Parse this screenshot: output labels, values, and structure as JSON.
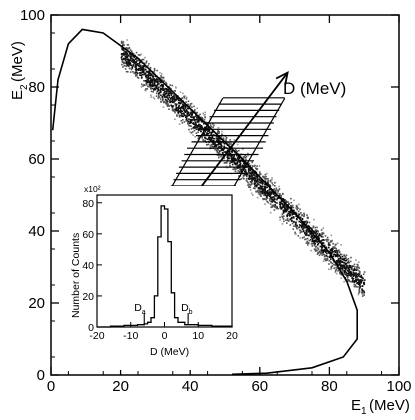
{
  "chart_data": [
    {
      "type": "scatter",
      "subtype": "density scatter plot with kinematic boundary curve",
      "xlabel_main": "E",
      "xlabel_sub": "1",
      "xlabel_unit": "(MeV)",
      "ylabel_main": "E",
      "ylabel_sub": "2",
      "ylabel_unit": "(MeV)",
      "xlim": [
        0,
        100
      ],
      "ylim": [
        0,
        100
      ],
      "xticks": [
        "0",
        "20",
        "40",
        "60",
        "80",
        "100"
      ],
      "yticks": [
        "0",
        "20",
        "40",
        "60",
        "80",
        "100"
      ],
      "grid": false,
      "annotation": "D (MeV)",
      "density_band": {
        "x_range": [
          20,
          90
        ],
        "center_line": [
          [
            20,
            90
          ],
          [
            55,
            58
          ],
          [
            90,
            25
          ]
        ],
        "half_width": 6
      },
      "kinematic_curve": [
        [
          0.5,
          68
        ],
        [
          2,
          82
        ],
        [
          5,
          92
        ],
        [
          9,
          96
        ],
        [
          15,
          95
        ],
        [
          25,
          88
        ],
        [
          40,
          74
        ],
        [
          55,
          60
        ],
        [
          70,
          45
        ],
        [
          80,
          34
        ],
        [
          85,
          26
        ],
        [
          88,
          18
        ],
        [
          88,
          10
        ],
        [
          84,
          5
        ],
        [
          75,
          2
        ],
        [
          62,
          0.5
        ],
        [
          52,
          0.2
        ]
      ],
      "gate_region": {
        "center": [
          50,
          63
        ],
        "hatch_lines": 17
      },
      "d_axis_arrow": {
        "from": [
          39,
          47
        ],
        "to": [
          68,
          84
        ]
      }
    },
    {
      "type": "line",
      "title": "",
      "xlabel": "D (MeV)",
      "ylabel": "Number of Counts",
      "y_multiplier": "x10²",
      "xlim": [
        -20,
        20
      ],
      "ylim": [
        0,
        85
      ],
      "xticks": [
        "-20",
        "-10",
        "0",
        "10",
        "20"
      ],
      "yticks": [
        "0",
        "20",
        "40",
        "60",
        "80"
      ],
      "series": [
        {
          "values": [
            [
              -20,
              0
            ],
            [
              -16,
              0.5
            ],
            [
              -12,
              1
            ],
            [
              -8,
              1.5
            ],
            [
              -6,
              2
            ],
            [
              -5,
              3
            ],
            [
              -4,
              6
            ],
            [
              -3,
              20
            ],
            [
              -2,
              58
            ],
            [
              -1,
              78
            ],
            [
              0,
              76
            ],
            [
              1,
              55
            ],
            [
              2,
              22
            ],
            [
              3,
              6
            ],
            [
              4,
              3
            ],
            [
              6,
              1.5
            ],
            [
              10,
              1
            ],
            [
              14,
              0.5
            ],
            [
              20,
              0
            ]
          ]
        }
      ],
      "markers": [
        {
          "label": "D",
          "sub": "a",
          "x": -6
        },
        {
          "label": "D",
          "sub": "b",
          "x": 7
        }
      ]
    }
  ]
}
